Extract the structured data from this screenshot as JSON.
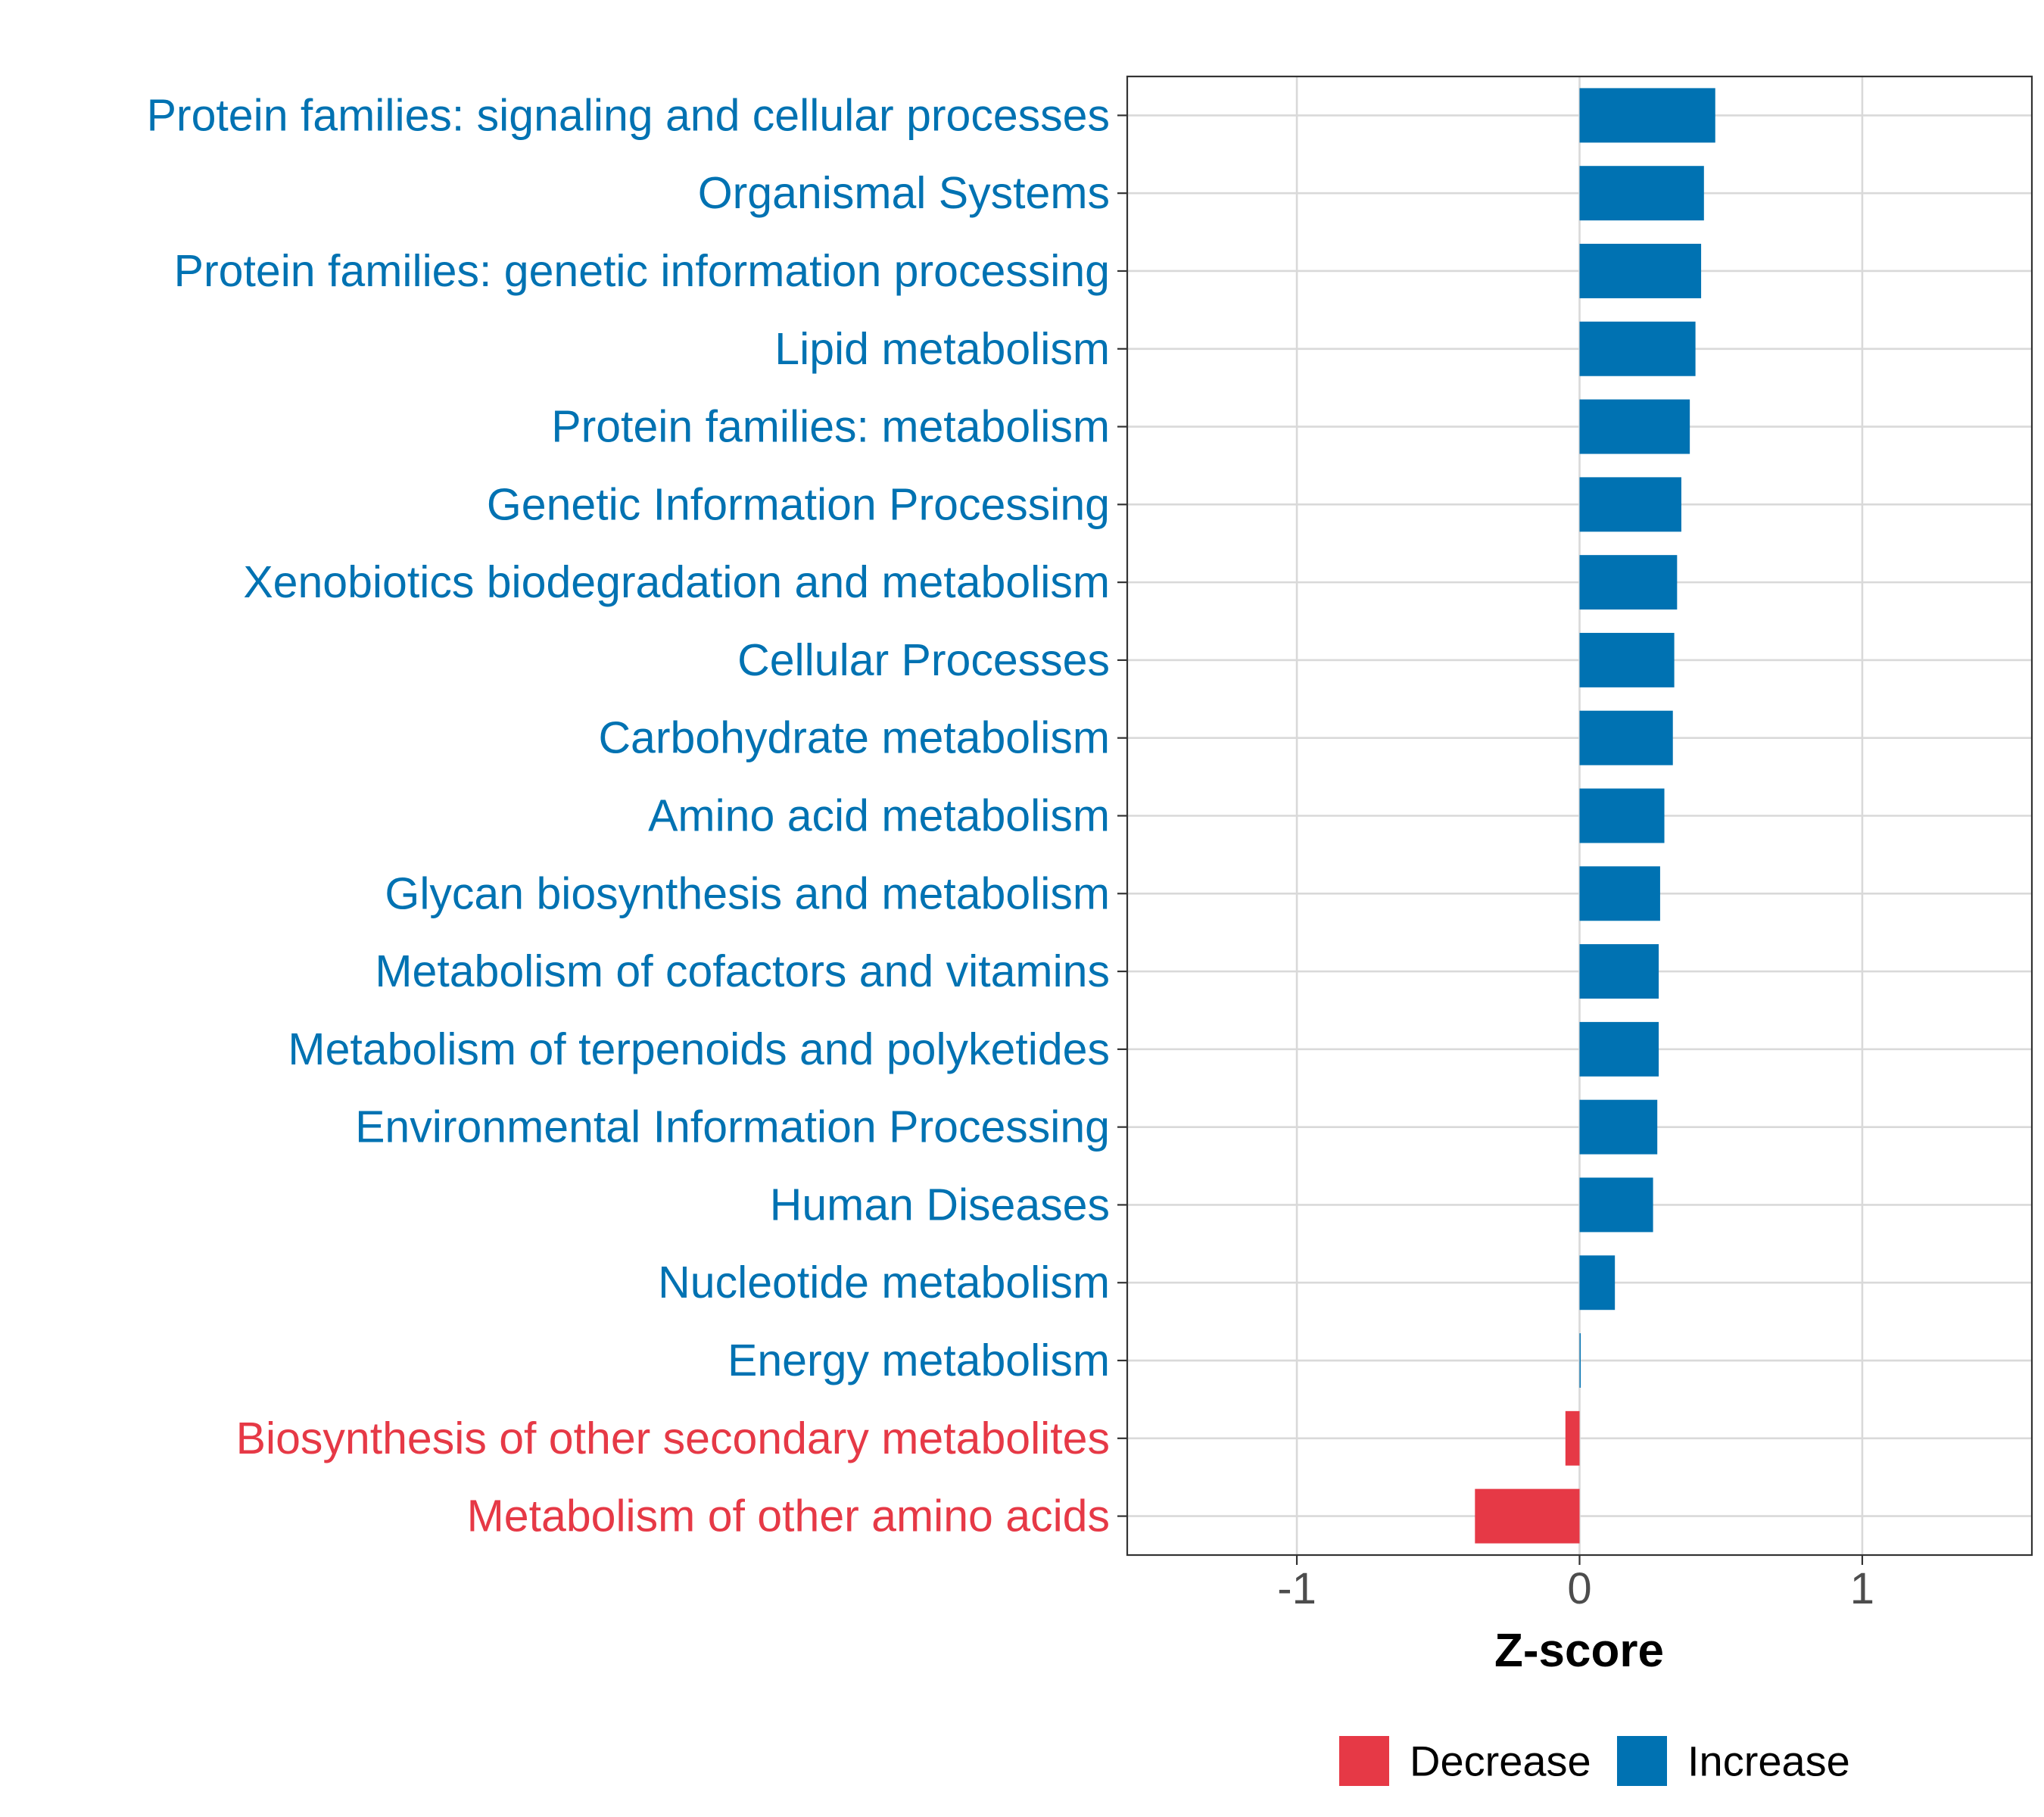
{
  "chart_data": {
    "type": "bar",
    "orientation": "horizontal",
    "title": "",
    "xlabel": "Z-score",
    "ylabel": "",
    "xlim": [
      -1.6,
      1.6
    ],
    "x_ticks": [
      -1,
      0,
      1
    ],
    "x_tick_labels": [
      "-1",
      "0",
      "1"
    ],
    "grid": true,
    "legend_position": "bottom",
    "legend": [
      {
        "label": "Decrease",
        "color": "#E63946"
      },
      {
        "label": "Increase",
        "color": "#0072B2"
      }
    ],
    "colors": {
      "Decrease": "#E63946",
      "Increase": "#0072B2"
    },
    "categories": [
      "Protein families: signaling and cellular processes",
      "Organismal Systems",
      "Protein families: genetic information processing",
      "Lipid metabolism",
      "Protein families: metabolism",
      "Genetic Information Processing",
      "Xenobiotics biodegradation and metabolism",
      "Cellular Processes",
      "Carbohydrate metabolism",
      "Amino acid metabolism",
      "Glycan biosynthesis and metabolism",
      "Metabolism of cofactors and vitamins",
      "Metabolism of terpenoids and polyketides",
      "Environmental Information Processing",
      "Human Diseases",
      "Nucleotide metabolism",
      "Energy metabolism",
      "Biosynthesis of other secondary metabolites",
      "Metabolism of other amino acids"
    ],
    "values": [
      0.48,
      0.44,
      0.43,
      0.41,
      0.39,
      0.36,
      0.345,
      0.335,
      0.33,
      0.3,
      0.285,
      0.28,
      0.28,
      0.275,
      0.26,
      0.125,
      0.003,
      -0.05,
      -0.37
    ],
    "groups": [
      "Increase",
      "Increase",
      "Increase",
      "Increase",
      "Increase",
      "Increase",
      "Increase",
      "Increase",
      "Increase",
      "Increase",
      "Increase",
      "Increase",
      "Increase",
      "Increase",
      "Increase",
      "Increase",
      "Increase",
      "Decrease",
      "Decrease"
    ]
  }
}
